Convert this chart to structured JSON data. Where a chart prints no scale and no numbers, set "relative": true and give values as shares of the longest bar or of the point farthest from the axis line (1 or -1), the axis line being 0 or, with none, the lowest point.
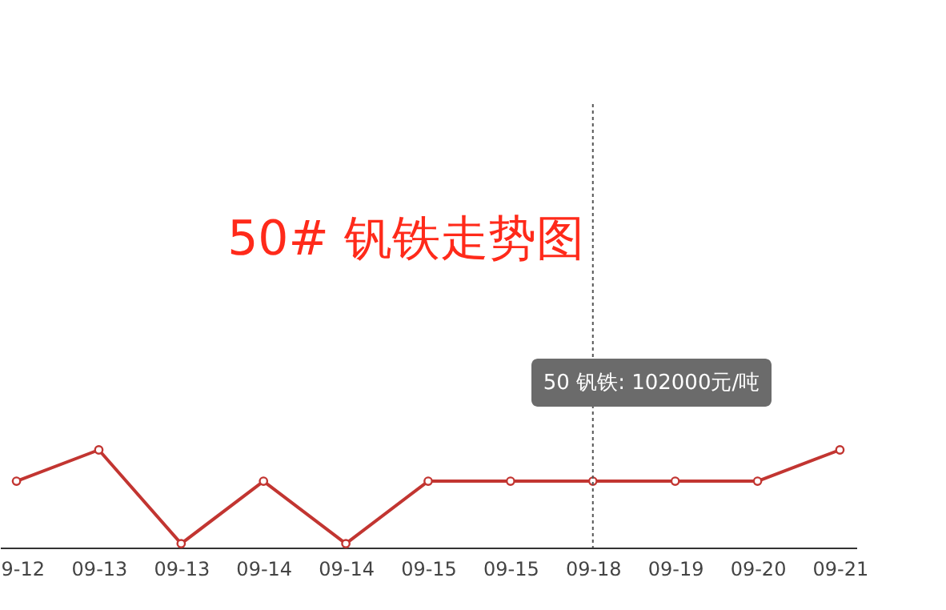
{
  "chart_data": {
    "type": "line",
    "title": "50# 钒铁走势图",
    "relative": true,
    "marker": "circle",
    "line_style": "solid",
    "categories": [
      "9-12",
      "09-13",
      "09-13",
      "09-14",
      "09-14",
      "09-15",
      "09-15",
      "09-18",
      "09-19",
      "09-20",
      "09-21"
    ],
    "series": [
      {
        "color": "#c23531",
        "values": [
          0.68,
          1,
          0.04,
          0.68,
          0.04,
          0.68,
          0.68,
          0.68,
          0.68,
          0.68,
          1
        ]
      }
    ],
    "ref_lines": [
      {
        "axis": "x",
        "value": "09-18",
        "line_style": "dotted",
        "color": "#555555"
      }
    ],
    "annotations": [
      "50 钒铁: 102000元/吨"
    ]
  }
}
